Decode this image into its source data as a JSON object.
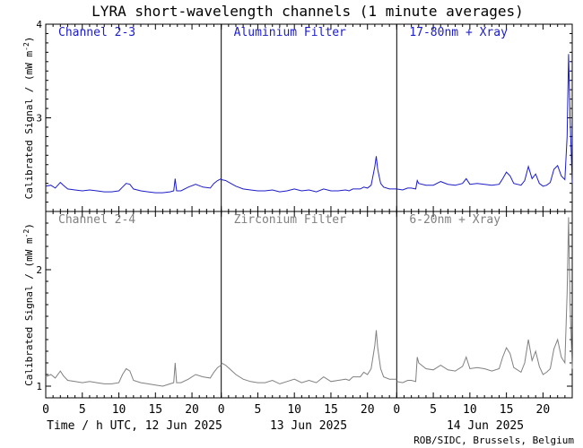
{
  "chart_data": {
    "type": "line",
    "title": "LYRA short-wavelength channels (1 minute averages)",
    "credit": "ROB/SIDC, Brussels, Belgium",
    "xlabel": "Time / h UTC, 12 Jun 2025",
    "day_labels": [
      "13 Jun 2025",
      "14 Jun 2025"
    ],
    "x_tick_labels": [
      "0",
      "5",
      "10",
      "15",
      "20"
    ],
    "x_ticks": [
      0,
      5,
      10,
      15,
      20
    ],
    "grid": false,
    "panels": [
      {
        "name": "top",
        "ylabel": "Calibrated Signal / (mW m",
        "ylabel_sup": "-2",
        "ylabel_end": ")",
        "ylim": [
          2.0,
          4.0
        ],
        "y_ticks": [
          3,
          4
        ],
        "y_tick_labels": [
          "3",
          "4"
        ],
        "color": "#1c1cc8",
        "channel_labels": [
          "Channel 2-3",
          "Aluminium Filter",
          "17-80nm + Xray"
        ],
        "series": {
          "days": [
            [
              [
                0,
                2.27
              ],
              [
                0.7,
                2.28
              ],
              [
                1.3,
                2.25
              ],
              [
                2,
                2.31
              ],
              [
                2.4,
                2.28
              ],
              [
                3,
                2.24
              ],
              [
                4,
                2.23
              ],
              [
                5,
                2.22
              ],
              [
                6,
                2.23
              ],
              [
                7,
                2.22
              ],
              [
                8,
                2.21
              ],
              [
                9,
                2.21
              ],
              [
                10,
                2.22
              ],
              [
                10.5,
                2.26
              ],
              [
                11,
                2.3
              ],
              [
                11.5,
                2.29
              ],
              [
                12,
                2.24
              ],
              [
                13,
                2.22
              ],
              [
                14,
                2.21
              ],
              [
                15,
                2.2
              ],
              [
                16,
                2.2
              ],
              [
                17,
                2.21
              ],
              [
                17.5,
                2.22
              ],
              [
                17.7,
                2.35
              ],
              [
                17.9,
                2.22
              ],
              [
                18.5,
                2.22
              ],
              [
                19.5,
                2.26
              ],
              [
                20.5,
                2.29
              ],
              [
                21.5,
                2.26
              ],
              [
                22.5,
                2.25
              ],
              [
                23,
                2.3
              ],
              [
                23.5,
                2.33
              ],
              [
                24,
                2.35
              ]
            ],
            [
              [
                0,
                2.34
              ],
              [
                0.6,
                2.33
              ],
              [
                1.3,
                2.3
              ],
              [
                2,
                2.27
              ],
              [
                3,
                2.24
              ],
              [
                4,
                2.23
              ],
              [
                5,
                2.22
              ],
              [
                6,
                2.22
              ],
              [
                7,
                2.23
              ],
              [
                8,
                2.21
              ],
              [
                9,
                2.22
              ],
              [
                10,
                2.24
              ],
              [
                11,
                2.22
              ],
              [
                12,
                2.23
              ],
              [
                13,
                2.21
              ],
              [
                14,
                2.24
              ],
              [
                15,
                2.22
              ],
              [
                16,
                2.22
              ],
              [
                17,
                2.23
              ],
              [
                17.5,
                2.22
              ],
              [
                18,
                2.24
              ],
              [
                19,
                2.24
              ],
              [
                19.5,
                2.26
              ],
              [
                20,
                2.25
              ],
              [
                20.5,
                2.28
              ],
              [
                21,
                2.48
              ],
              [
                21.2,
                2.59
              ],
              [
                21.4,
                2.45
              ],
              [
                21.8,
                2.3
              ],
              [
                22.2,
                2.26
              ],
              [
                23,
                2.24
              ],
              [
                24,
                2.24
              ]
            ],
            [
              [
                0,
                2.24
              ],
              [
                0.8,
                2.23
              ],
              [
                1.5,
                2.25
              ],
              [
                2,
                2.25
              ],
              [
                2.6,
                2.24
              ],
              [
                2.8,
                2.33
              ],
              [
                3,
                2.3
              ],
              [
                4,
                2.28
              ],
              [
                5,
                2.28
              ],
              [
                6,
                2.32
              ],
              [
                7,
                2.29
              ],
              [
                8,
                2.28
              ],
              [
                9,
                2.3
              ],
              [
                9.5,
                2.35
              ],
              [
                10,
                2.29
              ],
              [
                11,
                2.3
              ],
              [
                12,
                2.29
              ],
              [
                13,
                2.28
              ],
              [
                14,
                2.29
              ],
              [
                14.5,
                2.35
              ],
              [
                15,
                2.42
              ],
              [
                15.5,
                2.38
              ],
              [
                16,
                2.3
              ],
              [
                17,
                2.28
              ],
              [
                17.5,
                2.33
              ],
              [
                18,
                2.48
              ],
              [
                18.5,
                2.35
              ],
              [
                19,
                2.4
              ],
              [
                19.5,
                2.3
              ],
              [
                20,
                2.27
              ],
              [
                20.5,
                2.28
              ],
              [
                21,
                2.31
              ],
              [
                21.5,
                2.45
              ],
              [
                22,
                2.49
              ],
              [
                22.5,
                2.38
              ],
              [
                23,
                2.34
              ],
              [
                23.3,
                2.8
              ],
              [
                23.5,
                3.68
              ],
              [
                23.7,
                3.0
              ],
              [
                24,
                2.3
              ]
            ]
          ]
        }
      },
      {
        "name": "bottom",
        "ylabel": "Calibrated Signal / (mW m",
        "ylabel_sup": "-2",
        "ylabel_end": ")",
        "ylim": [
          0.9,
          2.5
        ],
        "y_ticks": [
          1,
          2
        ],
        "y_tick_labels": [
          "1",
          "2"
        ],
        "color": "#808080",
        "channel_labels": [
          "Channel 2-4",
          "Zirconium Filter",
          "6-20nm + Xray"
        ],
        "series": {
          "days": [
            [
              [
                0,
                1.08
              ],
              [
                0.7,
                1.1
              ],
              [
                1.3,
                1.07
              ],
              [
                2,
                1.13
              ],
              [
                2.4,
                1.09
              ],
              [
                3,
                1.05
              ],
              [
                4,
                1.04
              ],
              [
                5,
                1.03
              ],
              [
                6,
                1.04
              ],
              [
                7,
                1.03
              ],
              [
                8,
                1.02
              ],
              [
                9,
                1.02
              ],
              [
                10,
                1.03
              ],
              [
                10.5,
                1.1
              ],
              [
                11,
                1.15
              ],
              [
                11.5,
                1.13
              ],
              [
                12,
                1.05
              ],
              [
                13,
                1.03
              ],
              [
                14,
                1.02
              ],
              [
                15,
                1.01
              ],
              [
                16,
                1.0
              ],
              [
                17,
                1.02
              ],
              [
                17.5,
                1.03
              ],
              [
                17.7,
                1.2
              ],
              [
                17.9,
                1.03
              ],
              [
                18.5,
                1.03
              ],
              [
                19.5,
                1.06
              ],
              [
                20.5,
                1.1
              ],
              [
                21.5,
                1.08
              ],
              [
                22.5,
                1.07
              ],
              [
                23,
                1.12
              ],
              [
                23.5,
                1.16
              ],
              [
                24,
                1.18
              ]
            ],
            [
              [
                0,
                1.2
              ],
              [
                0.6,
                1.18
              ],
              [
                1.3,
                1.14
              ],
              [
                2,
                1.1
              ],
              [
                3,
                1.06
              ],
              [
                4,
                1.04
              ],
              [
                5,
                1.03
              ],
              [
                6,
                1.03
              ],
              [
                7,
                1.05
              ],
              [
                8,
                1.02
              ],
              [
                9,
                1.04
              ],
              [
                10,
                1.06
              ],
              [
                11,
                1.03
              ],
              [
                12,
                1.05
              ],
              [
                13,
                1.03
              ],
              [
                14,
                1.08
              ],
              [
                15,
                1.04
              ],
              [
                16,
                1.05
              ],
              [
                17,
                1.06
              ],
              [
                17.5,
                1.05
              ],
              [
                18,
                1.08
              ],
              [
                19,
                1.08
              ],
              [
                19.5,
                1.12
              ],
              [
                20,
                1.1
              ],
              [
                20.5,
                1.15
              ],
              [
                21,
                1.35
              ],
              [
                21.2,
                1.48
              ],
              [
                21.4,
                1.33
              ],
              [
                21.8,
                1.15
              ],
              [
                22.2,
                1.08
              ],
              [
                23,
                1.06
              ],
              [
                24,
                1.06
              ]
            ],
            [
              [
                0,
                1.04
              ],
              [
                0.8,
                1.03
              ],
              [
                1.5,
                1.05
              ],
              [
                2,
                1.05
              ],
              [
                2.6,
                1.04
              ],
              [
                2.8,
                1.25
              ],
              [
                3,
                1.2
              ],
              [
                4,
                1.15
              ],
              [
                5,
                1.14
              ],
              [
                6,
                1.18
              ],
              [
                7,
                1.14
              ],
              [
                8,
                1.13
              ],
              [
                9,
                1.17
              ],
              [
                9.5,
                1.25
              ],
              [
                10,
                1.15
              ],
              [
                11,
                1.16
              ],
              [
                12,
                1.15
              ],
              [
                13,
                1.13
              ],
              [
                14,
                1.15
              ],
              [
                14.5,
                1.25
              ],
              [
                15,
                1.33
              ],
              [
                15.5,
                1.28
              ],
              [
                16,
                1.16
              ],
              [
                17,
                1.12
              ],
              [
                17.5,
                1.2
              ],
              [
                18,
                1.4
              ],
              [
                18.5,
                1.22
              ],
              [
                19,
                1.3
              ],
              [
                19.5,
                1.17
              ],
              [
                20,
                1.1
              ],
              [
                20.5,
                1.12
              ],
              [
                21,
                1.15
              ],
              [
                21.5,
                1.32
              ],
              [
                22,
                1.4
              ],
              [
                22.5,
                1.25
              ],
              [
                23,
                1.2
              ],
              [
                23.3,
                1.8
              ],
              [
                23.5,
                2.45
              ],
              [
                23.7,
                1.7
              ],
              [
                24,
                1.15
              ]
            ]
          ]
        }
      }
    ]
  }
}
